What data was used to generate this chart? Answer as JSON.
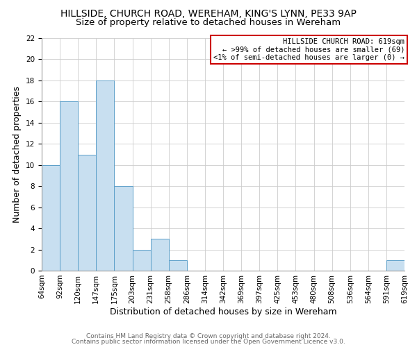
{
  "title": "HILLSIDE, CHURCH ROAD, WEREHAM, KING'S LYNN, PE33 9AP",
  "subtitle": "Size of property relative to detached houses in Wereham",
  "xlabel": "Distribution of detached houses by size in Wereham",
  "ylabel": "Number of detached properties",
  "bar_color": "#c8dff0",
  "bar_edge_color": "#5a9ec9",
  "bin_labels": [
    "64sqm",
    "92sqm",
    "120sqm",
    "147sqm",
    "175sqm",
    "203sqm",
    "231sqm",
    "258sqm",
    "286sqm",
    "314sqm",
    "342sqm",
    "369sqm",
    "397sqm",
    "425sqm",
    "453sqm",
    "480sqm",
    "508sqm",
    "536sqm",
    "564sqm",
    "591sqm",
    "619sqm"
  ],
  "bar_heights": [
    10,
    16,
    11,
    18,
    8,
    2,
    3,
    1,
    0,
    0,
    0,
    0,
    0,
    0,
    0,
    0,
    0,
    0,
    0,
    1
  ],
  "ylim": [
    0,
    22
  ],
  "yticks": [
    0,
    2,
    4,
    6,
    8,
    10,
    12,
    14,
    16,
    18,
    20,
    22
  ],
  "annotation_box_text": "HILLSIDE CHURCH ROAD: 619sqm\n← >99% of detached houses are smaller (69)\n<1% of semi-detached houses are larger (0) →",
  "annotation_box_color": "#ffffff",
  "annotation_box_edge_color": "#cc0000",
  "footer_line1": "Contains HM Land Registry data © Crown copyright and database right 2024.",
  "footer_line2": "Contains public sector information licensed under the Open Government Licence v3.0.",
  "grid_color": "#cccccc",
  "title_fontsize": 10,
  "subtitle_fontsize": 9.5,
  "axis_label_fontsize": 9,
  "tick_fontsize": 7.5,
  "footer_fontsize": 6.5,
  "annotation_fontsize": 7.5
}
